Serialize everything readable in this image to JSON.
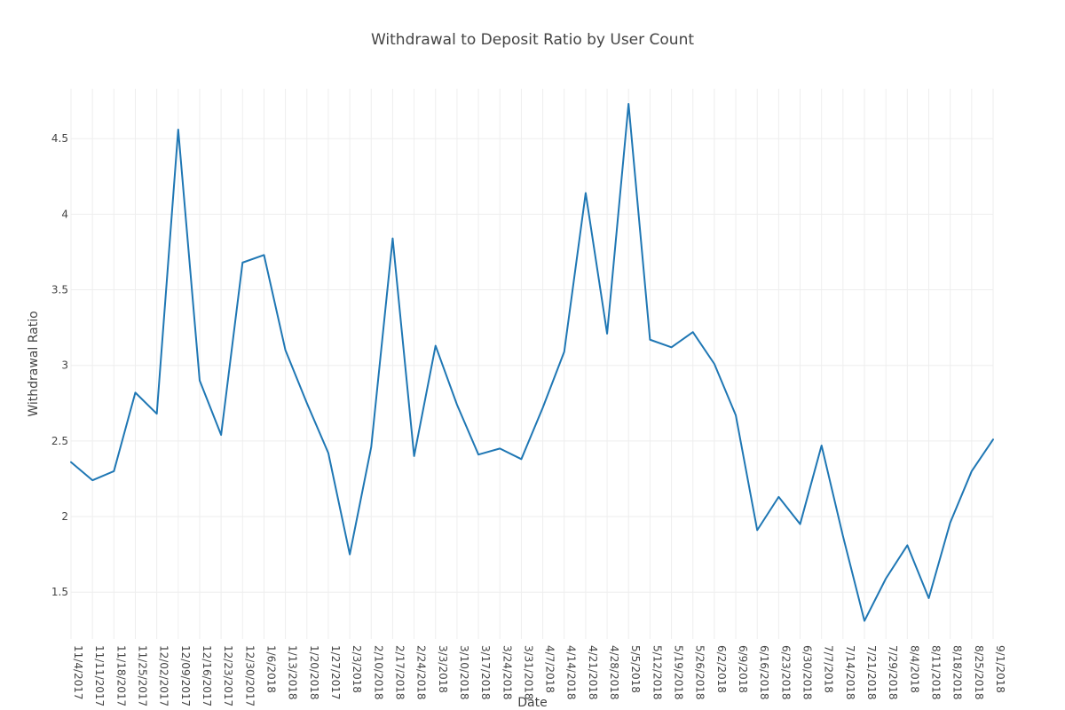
{
  "chart_data": {
    "type": "line",
    "title": "Withdrawal to Deposit Ratio by User Count",
    "xlabel": "Date",
    "ylabel": "Withdrawal Ratio",
    "grid": true,
    "x": [
      "11/4/2017",
      "11/11/2017",
      "11/18/2017",
      "11/25/2017",
      "12/02/2017",
      "12/09/2017",
      "12/16/2017",
      "12/23/2017",
      "12/30/2017",
      "1/6/2018",
      "1/13/2018",
      "1/20/2018",
      "1/27/2017",
      "2/3/2018",
      "2/10/2018",
      "2/17/2018",
      "2/24/2018",
      "3/3/2018",
      "3/10/2018",
      "3/17/2018",
      "3/24/2018",
      "3/31/2018",
      "4/7/2018",
      "4/14/2018",
      "4/21/2018",
      "4/28/2018",
      "5/5/2018",
      "5/12/2018",
      "5/19/2018",
      "5/26/2018",
      "6/2/2018",
      "6/9/2018",
      "6/16/2018",
      "6/23/2018",
      "6/30/2018",
      "7/7/2018",
      "7/14/2018",
      "7/21/2018",
      "7/29/2018",
      "8/4/2018",
      "8/11/2018",
      "8/18/2018",
      "8/25/2018",
      "9/1/2018"
    ],
    "yticks": [
      1.5,
      2,
      2.5,
      3,
      3.5,
      4,
      4.5
    ],
    "yticklabels": [
      "1.5",
      "2",
      "2.5",
      "3",
      "3.5",
      "4",
      "4.5"
    ],
    "ylim": [
      1.19,
      4.83
    ],
    "series": [
      {
        "color": "#1f77b4",
        "values": [
          2.36,
          2.24,
          2.3,
          2.82,
          2.68,
          4.56,
          2.9,
          2.54,
          3.68,
          3.73,
          3.1,
          2.75,
          2.42,
          1.75,
          2.46,
          3.84,
          2.4,
          3.13,
          2.74,
          2.41,
          2.45,
          2.38,
          2.72,
          3.09,
          4.14,
          3.21,
          4.73,
          3.17,
          3.12,
          3.22,
          3.01,
          2.67,
          1.91,
          2.13,
          1.95,
          2.47,
          1.87,
          1.31,
          1.59,
          1.81,
          1.46,
          1.96,
          2.3,
          2.51
        ]
      }
    ]
  }
}
